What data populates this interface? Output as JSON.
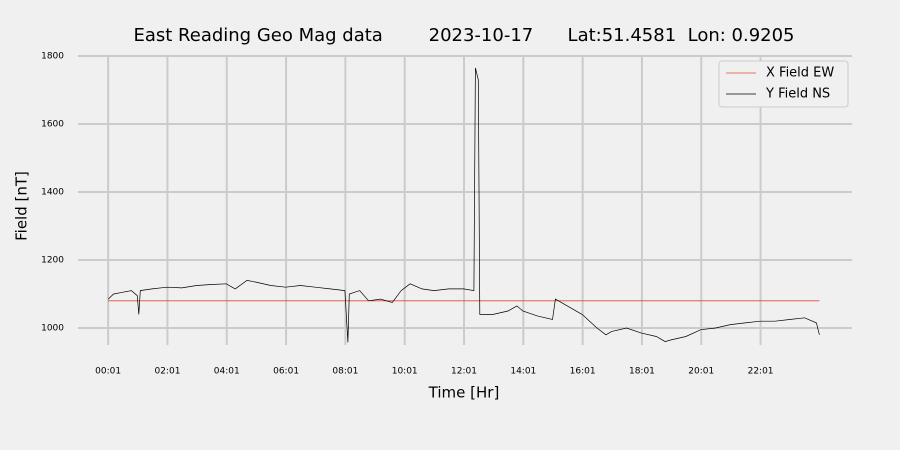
{
  "chart_data": {
    "type": "line",
    "title": "East Reading Geo Mag data        2023-10-17      Lat:51.4581  Lon: 0.9205",
    "x_label": "Time  [Hr]",
    "y_label": "Field  [nT]",
    "x": [
      0.02,
      0.2,
      0.5,
      0.8,
      1.0,
      1.05,
      1.1,
      1.5,
      2,
      2.5,
      3,
      3.5,
      4,
      4.3,
      4.7,
      5,
      5.5,
      6,
      6.5,
      7,
      7.5,
      8,
      8.1,
      8.15,
      8.5,
      8.8,
      9.2,
      9.6,
      9.9,
      10.2,
      10.6,
      11,
      11.5,
      12,
      12.35,
      12.4,
      12.5,
      12.55,
      13,
      13.5,
      13.8,
      14,
      14.5,
      15,
      15.1,
      15.5,
      16,
      16.5,
      16.8,
      17,
      17.5,
      18,
      18.5,
      18.8,
      19,
      19.5,
      20,
      20.5,
      21,
      21.5,
      22,
      22.5,
      23,
      23.5,
      23.9,
      24
    ],
    "series": [
      {
        "name": "X Field EW",
        "color": "#e24a33",
        "values": [
          1080,
          1080,
          1080,
          1080,
          1080,
          1080,
          1080,
          1080,
          1080,
          1080,
          1080,
          1080,
          1080,
          1080,
          1080,
          1080,
          1080,
          1080,
          1080,
          1080,
          1080,
          1080,
          1080,
          1080,
          1080,
          1080,
          1080,
          1080,
          1080,
          1080,
          1080,
          1080,
          1080,
          1080,
          1080,
          1080,
          1080,
          1080,
          1080,
          1080,
          1080,
          1080,
          1080,
          1080,
          1080,
          1080,
          1080,
          1080,
          1080,
          1080,
          1080,
          1080,
          1080,
          1080,
          1080,
          1080,
          1080,
          1080,
          1080,
          1080,
          1080,
          1080,
          1080,
          1080,
          1080,
          1080
        ]
      },
      {
        "name": "Y Field NS",
        "color": "#000000",
        "values": [
          1085,
          1100,
          1105,
          1110,
          1095,
          1040,
          1110,
          1115,
          1120,
          1118,
          1125,
          1128,
          1130,
          1115,
          1140,
          1135,
          1125,
          1120,
          1125,
          1120,
          1115,
          1110,
          958,
          1100,
          1110,
          1080,
          1085,
          1075,
          1110,
          1130,
          1115,
          1110,
          1115,
          1115,
          1110,
          1765,
          1730,
          1040,
          1040,
          1050,
          1065,
          1050,
          1035,
          1025,
          1085,
          1065,
          1040,
          1000,
          980,
          990,
          1000,
          985,
          975,
          960,
          965,
          975,
          995,
          1000,
          1010,
          1015,
          1020,
          1020,
          1025,
          1030,
          1015,
          980
        ]
      }
    ],
    "xlim": [
      -1,
      25.1
    ],
    "ylim": [
      950,
      1800
    ],
    "xticks": [
      {
        "value": 0.0167,
        "label": "00:01"
      },
      {
        "value": 2.0167,
        "label": "02:01"
      },
      {
        "value": 4.0167,
        "label": "04:01"
      },
      {
        "value": 6.0167,
        "label": "06:01"
      },
      {
        "value": 8.0167,
        "label": "08:01"
      },
      {
        "value": 10.0167,
        "label": "10:01"
      },
      {
        "value": 12.0167,
        "label": "12:01"
      },
      {
        "value": 14.0167,
        "label": "14:01"
      },
      {
        "value": 16.0167,
        "label": "16:01"
      },
      {
        "value": 18.0167,
        "label": "18:01"
      },
      {
        "value": 20.0167,
        "label": "20:01"
      },
      {
        "value": 22.0167,
        "label": "22:01"
      }
    ],
    "yticks": [
      1000,
      1200,
      1400,
      1600,
      1800
    ],
    "grid": true,
    "legend": "upper right"
  }
}
